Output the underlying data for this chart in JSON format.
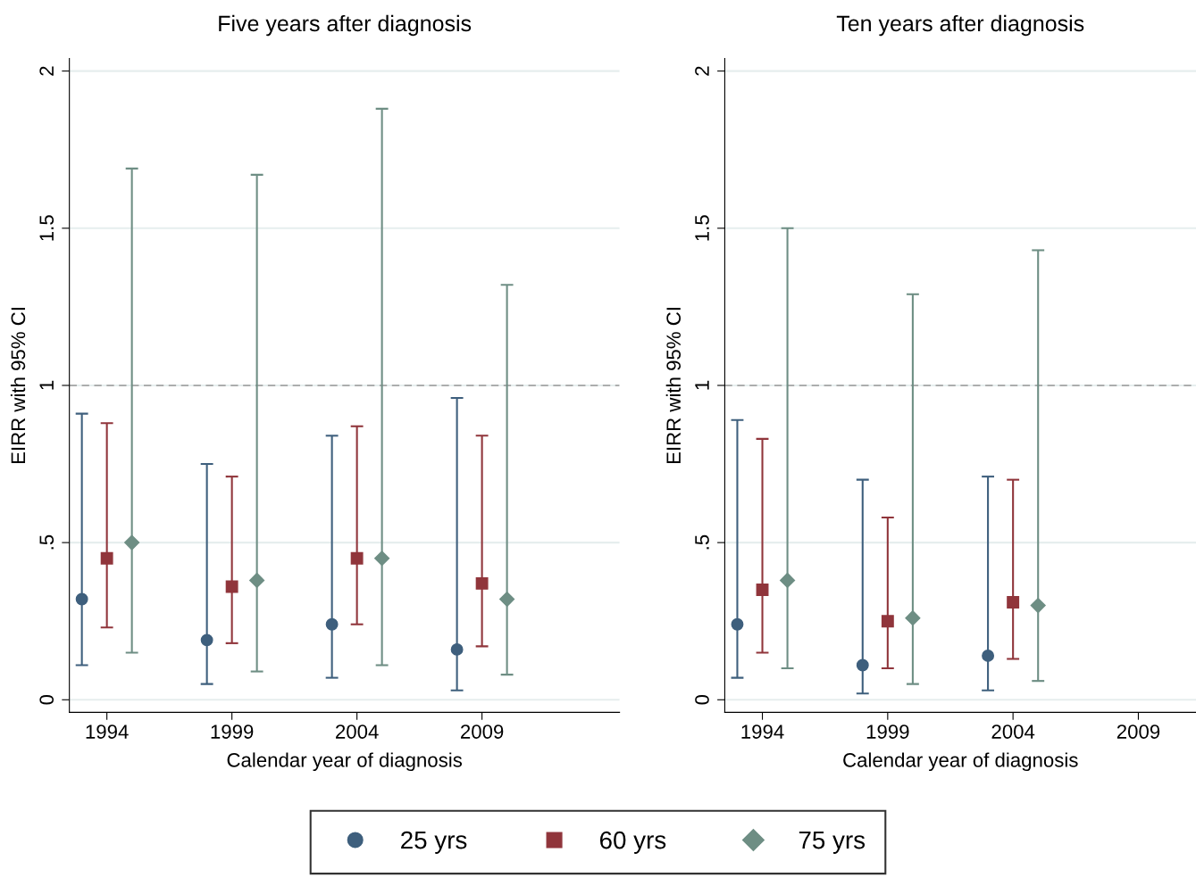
{
  "chart_data": [
    {
      "type": "scatter",
      "title": "Five years after diagnosis",
      "xlabel": "Calendar year of diagnosis",
      "ylabel": "EIRR with 95% CI",
      "xlim": [
        1992.5,
        2014.5
      ],
      "xticks": [
        1994,
        1999,
        2004,
        2009
      ],
      "ylim": [
        -0.04,
        2.04
      ],
      "yticks": [
        0,
        {
          "value": 0.5,
          "label": ".5"
        },
        1,
        1.5,
        2
      ],
      "grid": "y",
      "legend": "bottom",
      "ref_lines": [
        {
          "axis": "y",
          "value": 1,
          "color": "#999999",
          "line_style": "dashed"
        }
      ],
      "series": [
        {
          "name": "25 yrs",
          "color": "#3e5f7d",
          "marker": "circle",
          "x": [
            1993,
            1998,
            2003,
            2008
          ],
          "values": [
            0.32,
            0.19,
            0.24,
            0.16
          ],
          "errors": [
            [
              0.11,
              0.91
            ],
            [
              0.05,
              0.75
            ],
            [
              0.07,
              0.84
            ],
            [
              0.03,
              0.96
            ]
          ]
        },
        {
          "name": "60 yrs",
          "color": "#90353b",
          "marker": "square",
          "x": [
            1994,
            1999,
            2004,
            2009
          ],
          "values": [
            0.45,
            0.36,
            0.45,
            0.37
          ],
          "errors": [
            [
              0.23,
              0.88
            ],
            [
              0.18,
              0.71
            ],
            [
              0.24,
              0.87
            ],
            [
              0.17,
              0.84
            ]
          ]
        },
        {
          "name": "75 yrs",
          "color": "#6e8e84",
          "marker": "diamond",
          "x": [
            1995,
            2000,
            2005,
            2010
          ],
          "values": [
            0.5,
            0.38,
            0.45,
            0.32
          ],
          "errors": [
            [
              0.15,
              1.69
            ],
            [
              0.09,
              1.67
            ],
            [
              0.11,
              1.88
            ],
            [
              0.08,
              1.32
            ]
          ]
        }
      ]
    },
    {
      "type": "scatter",
      "title": "Ten years after diagnosis",
      "xlabel": "Calendar year of diagnosis",
      "ylabel": "EIRR with 95% CI",
      "xlim": [
        1992.5,
        2011.3
      ],
      "xticks": [
        1994,
        1999,
        2004,
        2009
      ],
      "ylim": [
        -0.04,
        2.04
      ],
      "yticks": [
        0,
        {
          "value": 0.5,
          "label": ".5"
        },
        1,
        1.5,
        2
      ],
      "grid": "y",
      "ref_lines": [
        {
          "axis": "y",
          "value": 1,
          "color": "#999999",
          "line_style": "dashed"
        }
      ],
      "series": [
        {
          "color": "#3e5f7d",
          "marker": "circle",
          "x": [
            1993,
            1998,
            2003
          ],
          "values": [
            0.24,
            0.11,
            0.14
          ],
          "errors": [
            [
              0.07,
              0.89
            ],
            [
              0.02,
              0.7
            ],
            [
              0.03,
              0.71
            ]
          ]
        },
        {
          "color": "#90353b",
          "marker": "square",
          "x": [
            1994,
            1999,
            2004
          ],
          "values": [
            0.35,
            0.25,
            0.31
          ],
          "errors": [
            [
              0.15,
              0.83
            ],
            [
              0.1,
              0.58
            ],
            [
              0.13,
              0.7
            ]
          ]
        },
        {
          "color": "#6e8e84",
          "marker": "diamond",
          "x": [
            1995,
            2000,
            2005
          ],
          "values": [
            0.38,
            0.26,
            0.3
          ],
          "errors": [
            [
              0.1,
              1.5
            ],
            [
              0.05,
              1.29
            ],
            [
              0.06,
              1.43
            ]
          ]
        }
      ]
    }
  ]
}
